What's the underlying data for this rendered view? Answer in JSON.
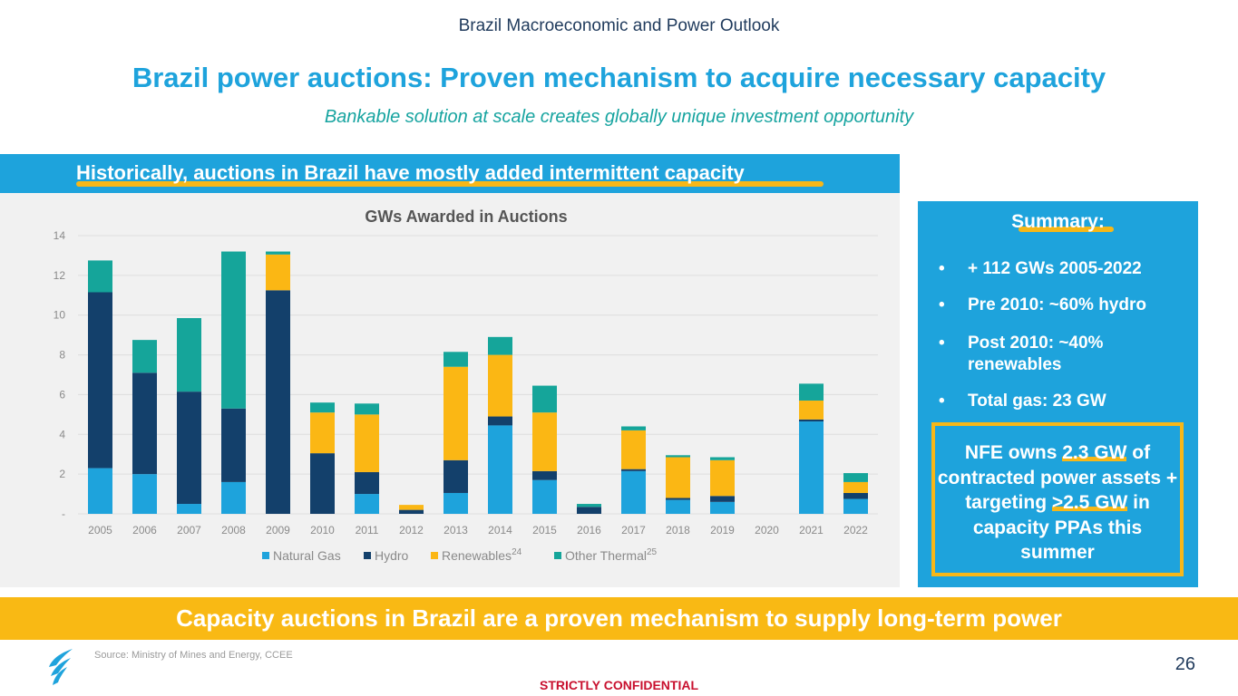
{
  "header": {
    "section_title": "Brazil Macroeconomic and Power Outlook",
    "title": "Brazil power auctions: Proven mechanism to acquire necessary capacity",
    "subtitle": "Bankable solution at scale creates globally unique investment opportunity"
  },
  "banner": {
    "text": "Historically, auctions in Brazil have mostly added intermittent capacity"
  },
  "summary": {
    "title": "Summary:",
    "bullets": [
      "+ 112 GWs 2005-2022",
      "Pre 2010: ~60% hydro",
      "Post 2010: ~40% renewables",
      "Total gas: 23 GW"
    ],
    "callout_pre": "NFE owns ",
    "callout_hl1": "2.3 GW",
    "callout_mid": " of contracted power assets + targeting ",
    "callout_hl2": ">2.5 GW",
    "callout_post": " in capacity PPAs this summer"
  },
  "bottom_bar": {
    "text": "Capacity auctions in Brazil are a proven mechanism to supply long-term power"
  },
  "footer": {
    "source": "Source:  Ministry of Mines and Energy, CCEE",
    "page_number": "26",
    "confidential": "STRICTLY CONFIDENTIAL"
  },
  "colors": {
    "natural_gas": "#1ea3dc",
    "hydro": "#13406b",
    "renewables": "#fbb714",
    "other_thermal": "#15a59a"
  },
  "chart_data": {
    "type": "bar",
    "stacked": true,
    "title": "GWs Awarded in Auctions",
    "categories": [
      "2005",
      "2006",
      "2007",
      "2008",
      "2009",
      "2010",
      "2011",
      "2012",
      "2013",
      "2014",
      "2015",
      "2016",
      "2017",
      "2018",
      "2019",
      "2020",
      "2021",
      "2022"
    ],
    "y_ticks": [
      "-",
      "2",
      "4",
      "6",
      "8",
      "10",
      "12",
      "14"
    ],
    "ylim": [
      0,
      14
    ],
    "series": [
      {
        "name": "Natural Gas",
        "superscript": "",
        "color": "#1ea3dc",
        "values": [
          2.3,
          2.0,
          0.5,
          1.6,
          0,
          0,
          1.0,
          0,
          1.05,
          4.45,
          1.7,
          0,
          2.15,
          0.7,
          0.6,
          0,
          4.65,
          0.75
        ]
      },
      {
        "name": "Hydro",
        "superscript": "",
        "color": "#13406b",
        "values": [
          8.85,
          5.1,
          5.65,
          3.7,
          11.25,
          3.05,
          1.1,
          0.2,
          1.65,
          0.45,
          0.45,
          0.35,
          0.1,
          0.1,
          0.3,
          0,
          0.1,
          0.3
        ]
      },
      {
        "name": "Renewables",
        "superscript": "24",
        "color": "#fbb714",
        "values": [
          0,
          0,
          0,
          0,
          1.8,
          2.05,
          2.9,
          0.25,
          4.7,
          3.1,
          2.95,
          0,
          1.95,
          2.05,
          1.8,
          0,
          0.95,
          0.55
        ]
      },
      {
        "name": "Other Thermal",
        "superscript": "25",
        "color": "#15a59a",
        "values": [
          1.6,
          1.65,
          3.7,
          7.9,
          0.15,
          0.5,
          0.55,
          0,
          0.75,
          0.9,
          1.35,
          0.15,
          0.2,
          0.1,
          0.15,
          0,
          0.85,
          0.45
        ]
      }
    ]
  }
}
